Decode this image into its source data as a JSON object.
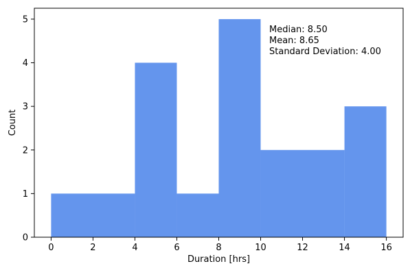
{
  "chart_data": {
    "type": "bar",
    "bins": [
      {
        "x0": 0,
        "x1": 4,
        "count": 1
      },
      {
        "x0": 4,
        "x1": 6,
        "count": 4
      },
      {
        "x0": 6,
        "x1": 8,
        "count": 1
      },
      {
        "x0": 8,
        "x1": 10,
        "count": 5
      },
      {
        "x0": 10,
        "x1": 14,
        "count": 2
      },
      {
        "x0": 14,
        "x1": 16,
        "count": 3
      }
    ],
    "xlabel": "Duration [hrs]",
    "ylabel": "Count",
    "xlim": [
      -0.8,
      16.8
    ],
    "ylim": [
      0,
      5.25
    ],
    "xticks": [
      0,
      2,
      4,
      6,
      8,
      10,
      12,
      14,
      16
    ],
    "yticks": [
      0,
      1,
      2,
      3,
      4,
      5
    ],
    "grid": false,
    "bar_color": "#6495ED",
    "annotations": [
      "Median: 8.50",
      "Mean: 8.65",
      "Standard Deviation: 4.00"
    ]
  }
}
